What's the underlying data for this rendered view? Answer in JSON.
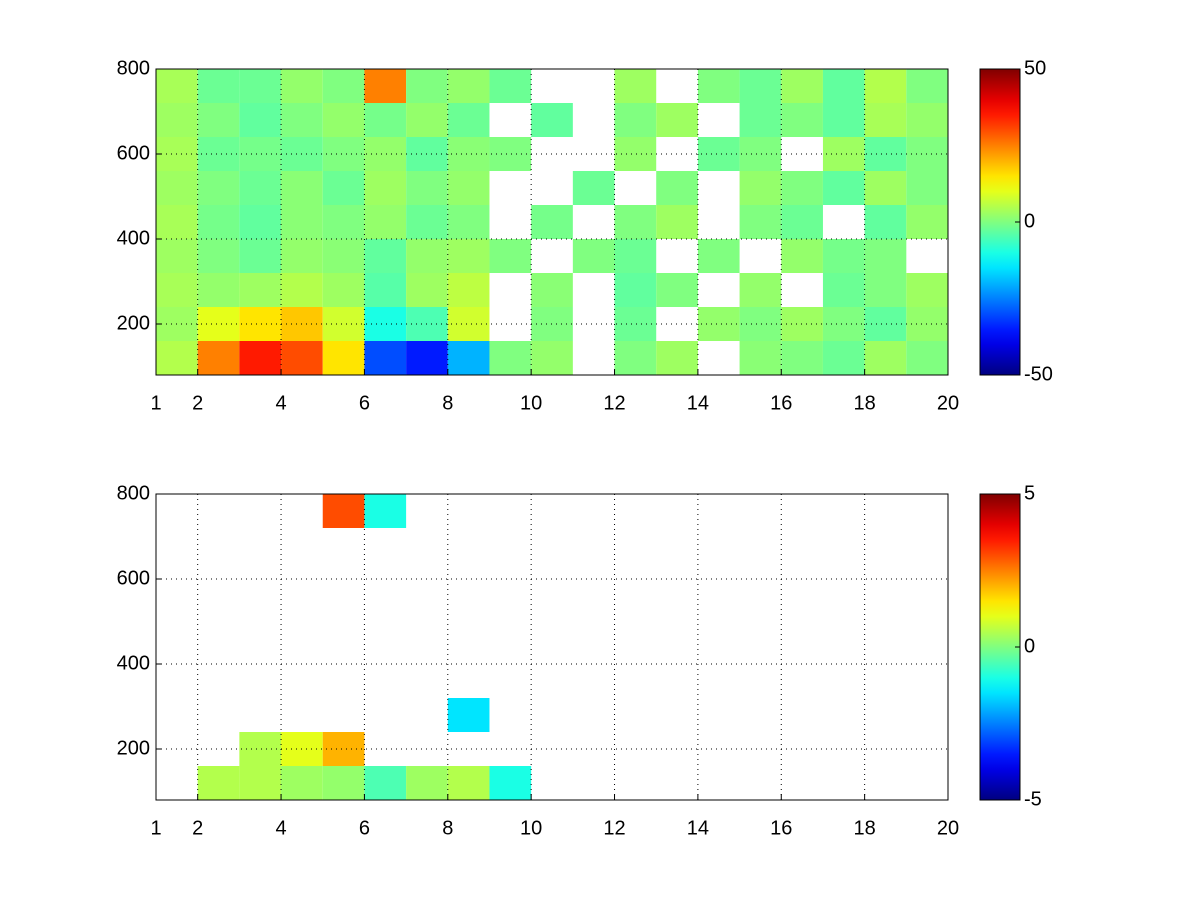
{
  "chart_data": [
    {
      "type": "heatmap",
      "colormap": "jet",
      "grid": true,
      "xbins": [
        1,
        2,
        3,
        4,
        5,
        6,
        7,
        8,
        9,
        10,
        11,
        12,
        13,
        14,
        15,
        16,
        17,
        18,
        19,
        20
      ],
      "ybins": [
        80,
        160,
        240,
        320,
        400,
        480,
        560,
        640,
        720,
        800
      ],
      "xlim": [
        1,
        20
      ],
      "xticks": [
        1,
        2,
        4,
        6,
        8,
        10,
        12,
        14,
        16,
        18,
        20
      ],
      "ylim": [
        80,
        800
      ],
      "yticks": [
        200,
        400,
        600,
        800
      ],
      "clim": [
        -50,
        50
      ],
      "cticks": [
        -50,
        0,
        50
      ],
      "values": [
        [
          5,
          25,
          35,
          30,
          15,
          -30,
          -35,
          -20,
          0,
          2,
          null,
          0,
          3,
          null,
          1,
          0,
          -2,
          3,
          0
        ],
        [
          3,
          10,
          15,
          18,
          8,
          -10,
          -5,
          8,
          null,
          0,
          null,
          -2,
          null,
          2,
          0,
          3,
          0,
          -3,
          2
        ],
        [
          4,
          2,
          3,
          5,
          3,
          -4,
          3,
          6,
          null,
          1,
          null,
          -3,
          0,
          null,
          2,
          null,
          -2,
          0,
          3
        ],
        [
          3,
          0,
          -2,
          2,
          1,
          -3,
          2,
          3,
          0,
          null,
          0,
          -2,
          null,
          0,
          null,
          2,
          -1,
          0,
          null
        ],
        [
          4,
          -1,
          -3,
          1,
          0,
          2,
          -2,
          0,
          null,
          -1,
          null,
          0,
          3,
          null,
          0,
          -2,
          null,
          -3,
          2
        ],
        [
          3,
          0,
          -2,
          1,
          -2,
          3,
          0,
          2,
          null,
          null,
          -2,
          null,
          0,
          null,
          2,
          0,
          -3,
          3,
          0
        ],
        [
          4,
          -2,
          -1,
          -2,
          0,
          2,
          -3,
          1,
          0,
          null,
          null,
          2,
          null,
          -2,
          0,
          null,
          3,
          -3,
          0
        ],
        [
          3,
          0,
          -3,
          0,
          2,
          -1,
          2,
          -2,
          null,
          -3,
          null,
          0,
          3,
          null,
          -2,
          0,
          -3,
          4,
          2
        ],
        [
          4,
          -2,
          -2,
          2,
          0,
          25,
          0,
          2,
          -2,
          null,
          null,
          3,
          null,
          0,
          -2,
          3,
          -3,
          5,
          0
        ]
      ]
    },
    {
      "type": "heatmap",
      "colormap": "jet",
      "grid": true,
      "xbins": [
        1,
        2,
        3,
        4,
        5,
        6,
        7,
        8,
        9,
        10,
        11,
        12,
        13,
        14,
        15,
        16,
        17,
        18,
        19,
        20
      ],
      "ybins": [
        80,
        160,
        240,
        320,
        400,
        480,
        560,
        640,
        720,
        800
      ],
      "xlim": [
        1,
        20
      ],
      "xticks": [
        1,
        2,
        4,
        6,
        8,
        10,
        12,
        14,
        16,
        18,
        20
      ],
      "ylim": [
        80,
        800
      ],
      "yticks": [
        200,
        400,
        600,
        800
      ],
      "clim": [
        -5,
        5
      ],
      "cticks": [
        -5,
        0,
        5
      ],
      "values": [
        [
          null,
          0.5,
          0.5,
          0.3,
          0.2,
          -0.5,
          0.3,
          0.5,
          -1,
          null,
          null,
          null,
          null,
          null,
          null,
          null,
          null,
          null,
          null
        ],
        [
          null,
          null,
          0.5,
          1,
          2,
          null,
          null,
          null,
          null,
          null,
          null,
          null,
          null,
          null,
          null,
          null,
          null,
          null,
          null
        ],
        [
          null,
          null,
          null,
          null,
          null,
          null,
          null,
          -1.5,
          null,
          null,
          null,
          null,
          null,
          null,
          null,
          null,
          null,
          null,
          null
        ],
        [
          null,
          null,
          null,
          null,
          null,
          null,
          null,
          null,
          null,
          null,
          null,
          null,
          null,
          null,
          null,
          null,
          null,
          null,
          null
        ],
        [
          null,
          null,
          null,
          null,
          null,
          null,
          null,
          null,
          null,
          null,
          null,
          null,
          null,
          null,
          null,
          null,
          null,
          null,
          null
        ],
        [
          null,
          null,
          null,
          null,
          null,
          null,
          null,
          null,
          null,
          null,
          null,
          null,
          null,
          null,
          null,
          null,
          null,
          null,
          null
        ],
        [
          null,
          null,
          null,
          null,
          null,
          null,
          null,
          null,
          null,
          null,
          null,
          null,
          null,
          null,
          null,
          null,
          null,
          null,
          null
        ],
        [
          null,
          null,
          null,
          null,
          null,
          null,
          null,
          null,
          null,
          null,
          null,
          null,
          null,
          null,
          null,
          null,
          null,
          null,
          null
        ],
        [
          null,
          null,
          null,
          null,
          3,
          -1,
          null,
          null,
          null,
          null,
          null,
          null,
          null,
          null,
          null,
          null,
          null,
          null,
          null
        ]
      ]
    }
  ]
}
